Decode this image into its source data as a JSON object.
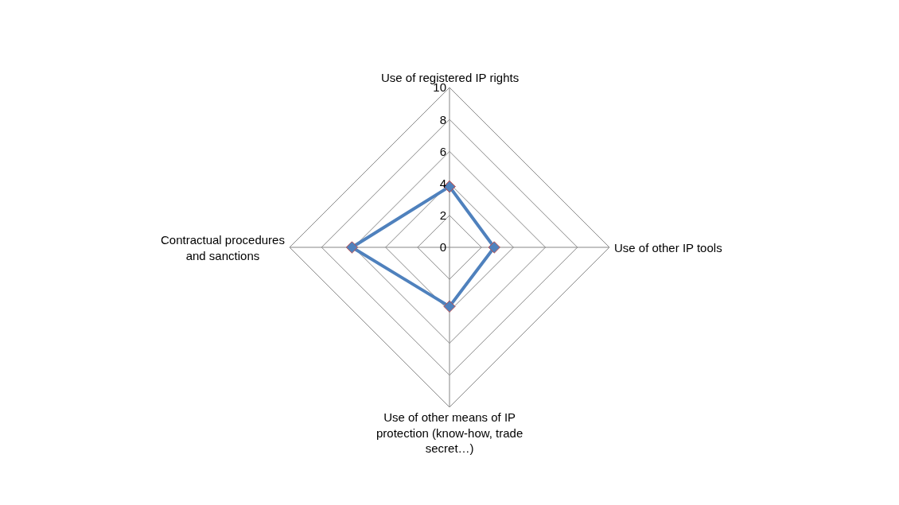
{
  "chart_data": {
    "type": "radar",
    "categories": [
      "Use of registered IP rights",
      "Use of other IP tools",
      "Use of other means of IP protection (know-how, trade secret…)",
      "Contractual procedures and sanctions"
    ],
    "series": [
      {
        "color": "#4f81bd",
        "values": [
          3.8,
          2.8,
          3.7,
          6.1
        ]
      }
    ],
    "ylim": [
      0,
      10
    ],
    "yticks": [
      0,
      2,
      4,
      6,
      8,
      10
    ],
    "grid": true,
    "marker": "diamond",
    "line_style": "solid"
  }
}
